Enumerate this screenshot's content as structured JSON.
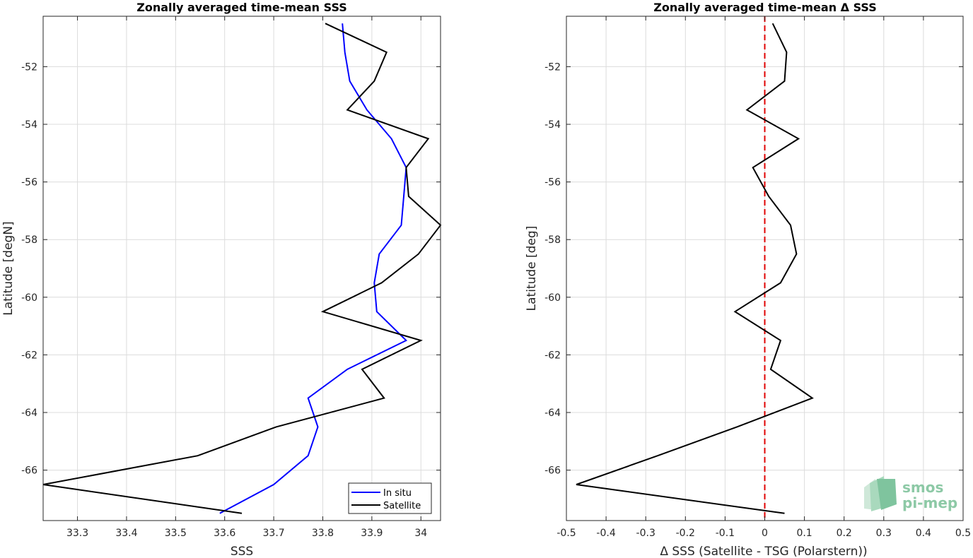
{
  "chart_data": [
    {
      "type": "line",
      "title": "Zonally averaged time-mean SSS",
      "xlabel": "SSS",
      "ylabel": "Latitude [degN]",
      "xlim": [
        33.23,
        34.04
      ],
      "ylim": [
        -67.75,
        -50.25
      ],
      "xticks": [
        33.3,
        33.4,
        33.5,
        33.6,
        33.7,
        33.8,
        33.9,
        34
      ],
      "xtick_labels": [
        "33.3",
        "33.4",
        "33.5",
        "33.6",
        "33.7",
        "33.8",
        "33.9",
        "34"
      ],
      "yticks": [
        -66,
        -64,
        -62,
        -60,
        -58,
        -56,
        -54,
        -52
      ],
      "ytick_labels": [
        "-66",
        "-64",
        "-62",
        "-60",
        "-58",
        "-56",
        "-54",
        "-52"
      ],
      "grid": true,
      "legend": "bottom-right",
      "series": [
        {
          "name": "In situ",
          "color": "#0000ff",
          "lat": [
            -50.5,
            -51.5,
            -52.5,
            -53.5,
            -54.5,
            -55.5,
            -56.5,
            -57.5,
            -58.5,
            -59.5,
            -60.5,
            -61.5,
            -62.5,
            -63.5,
            -64.5,
            -65.5,
            -66.5,
            -67.5
          ],
          "values": [
            33.84,
            33.845,
            33.855,
            33.89,
            33.94,
            33.97,
            33.965,
            33.96,
            33.915,
            33.905,
            33.91,
            33.97,
            33.85,
            33.77,
            33.79,
            33.77,
            33.7,
            33.59
          ]
        },
        {
          "name": "Satellite",
          "color": "#000000",
          "lat": [
            -50.5,
            -51.5,
            -52.5,
            -53.5,
            -54.5,
            -55.5,
            -56.5,
            -57.5,
            -58.5,
            -59.5,
            -60.5,
            -61.5,
            -62.5,
            -63.5,
            -64.5,
            -65.5,
            -66.5,
            -67.5
          ],
          "values": [
            33.805,
            33.93,
            33.905,
            33.85,
            34.015,
            33.97,
            33.975,
            34.04,
            33.995,
            33.92,
            33.8,
            34.0,
            33.88,
            33.925,
            33.705,
            33.545,
            33.23,
            33.635
          ]
        }
      ]
    },
    {
      "type": "line",
      "title": "Zonally averaged time-mean Δ SSS",
      "xlabel": "Δ SSS (Satellite - TSG (Polarstern))",
      "ylabel": "Latitude [deg]",
      "xlim": [
        -0.5,
        0.5
      ],
      "ylim": [
        -67.75,
        -50.25
      ],
      "xticks": [
        -0.5,
        -0.4,
        -0.3,
        -0.2,
        -0.1,
        0,
        0.1,
        0.2,
        0.3,
        0.4,
        0.5
      ],
      "xtick_labels": [
        "-0.5",
        "-0.4",
        "-0.3",
        "-0.2",
        "-0.1",
        "0",
        "0.1",
        "0.2",
        "0.3",
        "0.4",
        "0.5"
      ],
      "yticks": [
        -66,
        -64,
        -62,
        -60,
        -58,
        -56,
        -54,
        -52
      ],
      "ytick_labels": [
        "-66",
        "-64",
        "-62",
        "-60",
        "-58",
        "-56",
        "-54",
        "-52"
      ],
      "grid": true,
      "reference_line": {
        "x": 0,
        "color": "#e00000",
        "style": "dashed"
      },
      "series": [
        {
          "color": "#000000",
          "lat": [
            -50.5,
            -51.5,
            -52.5,
            -53.5,
            -54.5,
            -55.5,
            -56.5,
            -57.5,
            -58.5,
            -59.5,
            -60.5,
            -61.5,
            -62.5,
            -63.5,
            -64.5,
            -65.5,
            -66.5,
            -67.5
          ],
          "values": [
            0.02,
            0.055,
            0.05,
            -0.045,
            0.085,
            -0.03,
            0.01,
            0.065,
            0.08,
            0.04,
            -0.075,
            0.04,
            0.015,
            0.12,
            -0.07,
            -0.27,
            -0.475,
            0.05
          ]
        }
      ]
    }
  ],
  "logo": {
    "line1": "smos",
    "line2": "pi-mep",
    "color": "#8dc9a6"
  }
}
